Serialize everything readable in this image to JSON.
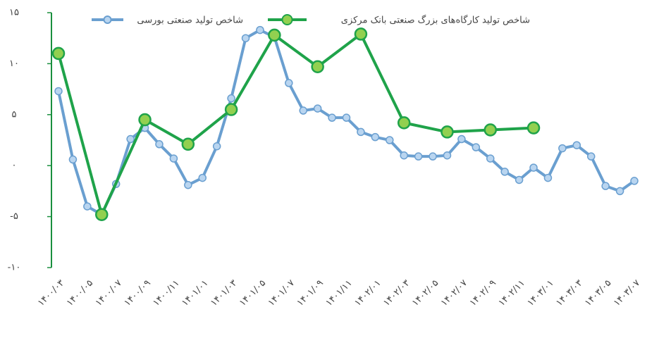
{
  "chart_data": {
    "type": "line",
    "categories": [
      "۱۴۰۰/۰۳",
      null,
      "۱۴۰۰/۰۵",
      null,
      "۱۴۰۰/۰۷",
      null,
      "۱۴۰۰/۰۹",
      null,
      "۱۴۰۰/۱۱",
      null,
      "۱۴۰۱/۰۱",
      null,
      "۱۴۰۱/۰۳",
      null,
      "۱۴۰۱/۰۵",
      null,
      "۱۴۰۱/۰۷",
      null,
      "۱۴۰۱/۰۹",
      null,
      "۱۴۰۱/۱۱",
      null,
      "۱۴۰۲/۰۱",
      null,
      "۱۴۰۲/۰۳",
      null,
      "۱۴۰۲/۰۵",
      null,
      "۱۴۰۲/۰۷",
      null,
      "۱۴۰۲/۰۹",
      null,
      "۱۴۰۲/۱۱",
      null,
      "۱۴۰۳/۰۱",
      null,
      "۱۴۰۳/۰۳",
      null,
      "۱۴۰۳/۰۵",
      null,
      "۱۴۰۳/۰۷"
    ],
    "series": [
      {
        "name": "شاخص تولید صنعتی بورسی",
        "color": "#6a9fd0",
        "marker_fill": "#b9d5f0",
        "values": [
          7.3,
          0.6,
          -4.0,
          -4.8,
          -1.8,
          2.6,
          3.7,
          2.1,
          0.7,
          -1.9,
          -1.2,
          1.9,
          6.6,
          12.5,
          13.3,
          12.6,
          8.1,
          5.4,
          5.6,
          4.7,
          4.7,
          3.3,
          2.8,
          2.5,
          1.0,
          0.9,
          0.9,
          1.0,
          2.6,
          1.8,
          0.7,
          -0.6,
          -1.4,
          -0.2,
          -1.2,
          1.7,
          2.0,
          0.9,
          -2.0,
          -2.5,
          -1.5
        ]
      },
      {
        "name": "شاخص تولید کارگاه‌های بزرگ صنعتی بانک مرکزی",
        "color": "#1fa34a",
        "marker_fill": "#92d050",
        "values": [
          11.0,
          null,
          null,
          -4.8,
          null,
          null,
          4.5,
          null,
          null,
          2.1,
          null,
          null,
          5.5,
          null,
          null,
          12.8,
          null,
          null,
          9.7,
          null,
          null,
          12.9,
          null,
          null,
          4.2,
          null,
          null,
          3.3,
          null,
          null,
          3.5,
          null,
          null,
          3.7,
          null,
          null,
          null,
          null,
          null,
          null,
          null
        ]
      }
    ],
    "ylim": [
      -10,
      15
    ],
    "yticks": [
      {
        "value": -10,
        "label": "-۱۰"
      },
      {
        "value": -5,
        "label": "-۵"
      },
      {
        "value": 0,
        "label": "۰"
      },
      {
        "value": 5,
        "label": "۵"
      },
      {
        "value": 10,
        "label": "۱۰"
      },
      {
        "value": 15,
        "label": "۱۵"
      }
    ],
    "axis_color": "#1a8f3e"
  }
}
